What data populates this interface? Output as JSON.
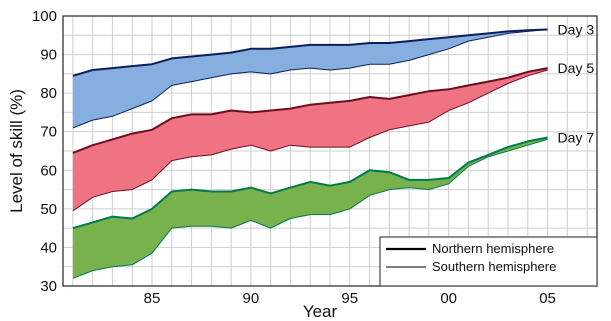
{
  "chart_data": {
    "type": "area",
    "xlabel": "Year",
    "ylabel": "Level of skill (%)",
    "xlim": [
      1980.5,
      2007.5
    ],
    "ylim": [
      30,
      100
    ],
    "x_ticks": [
      1985,
      1990,
      1995,
      2000,
      2005
    ],
    "x_tick_labels": [
      "85",
      "90",
      "95",
      "00",
      "05"
    ],
    "y_ticks": [
      30,
      40,
      50,
      60,
      70,
      80,
      90,
      100
    ],
    "grid": true,
    "legend": {
      "placement": "bottom-right",
      "entries": [
        {
          "label": "Northern hemisphere",
          "line": "thick"
        },
        {
          "label": "Southern hemisphere",
          "line": "thin"
        }
      ]
    },
    "series": [
      {
        "name": "Day 3",
        "fill": "#86afe0",
        "line": "#0b1f5c",
        "x": [
          1981,
          1982,
          1983,
          1984,
          1985,
          1986,
          1987,
          1988,
          1989,
          1990,
          1991,
          1992,
          1993,
          1994,
          1995,
          1996,
          1997,
          1998,
          1999,
          2000,
          2001,
          2002,
          2003,
          2004,
          2005
        ],
        "northern": [
          84.5,
          86.0,
          86.5,
          87.0,
          87.5,
          89.0,
          89.5,
          90.0,
          90.5,
          91.5,
          91.5,
          92.0,
          92.5,
          92.5,
          92.5,
          93.0,
          93.0,
          93.5,
          94.0,
          94.5,
          95.0,
          95.5,
          96.0,
          96.3,
          96.5
        ],
        "southern": [
          71.0,
          73.0,
          74.0,
          76.0,
          78.0,
          82.0,
          83.0,
          84.0,
          85.0,
          85.5,
          85.0,
          86.0,
          86.5,
          86.0,
          86.5,
          87.5,
          87.5,
          88.5,
          90.0,
          91.5,
          93.5,
          94.5,
          95.5,
          96.0,
          96.5
        ]
      },
      {
        "name": "Day 5",
        "fill": "#ef7382",
        "line": "#6b0f1f",
        "x": [
          1981,
          1982,
          1983,
          1984,
          1985,
          1986,
          1987,
          1988,
          1989,
          1990,
          1991,
          1992,
          1993,
          1994,
          1995,
          1996,
          1997,
          1998,
          1999,
          2000,
          2001,
          2002,
          2003,
          2004,
          2005
        ],
        "northern": [
          64.5,
          66.5,
          68.0,
          69.5,
          70.5,
          73.5,
          74.5,
          74.5,
          75.5,
          75.0,
          75.5,
          76.0,
          77.0,
          77.5,
          78.0,
          79.0,
          78.5,
          79.5,
          80.5,
          81.0,
          82.0,
          83.0,
          84.0,
          85.5,
          86.5
        ],
        "southern": [
          49.5,
          53.0,
          54.5,
          55.0,
          57.5,
          62.5,
          63.5,
          64.0,
          65.5,
          66.5,
          65.0,
          66.5,
          66.0,
          66.0,
          66.0,
          68.5,
          70.5,
          71.5,
          72.5,
          75.5,
          77.5,
          80.0,
          82.5,
          84.5,
          86.0
        ]
      },
      {
        "name": "Day 7",
        "fill": "#78b24d",
        "line": "#007a4d",
        "x": [
          1981,
          1982,
          1983,
          1984,
          1985,
          1986,
          1987,
          1988,
          1989,
          1990,
          1991,
          1992,
          1993,
          1994,
          1995,
          1996,
          1997,
          1998,
          1999,
          2000,
          2001,
          2002,
          2003,
          2004,
          2005
        ],
        "northern": [
          45.0,
          46.5,
          48.0,
          47.5,
          50.0,
          54.5,
          55.0,
          54.5,
          54.5,
          55.5,
          54.0,
          55.5,
          57.0,
          56.0,
          57.0,
          60.0,
          59.5,
          57.5,
          57.5,
          58.0,
          62.0,
          64.0,
          66.0,
          67.5,
          68.5
        ],
        "southern": [
          32.0,
          34.0,
          35.0,
          35.5,
          38.5,
          45.0,
          45.5,
          45.5,
          45.0,
          47.0,
          45.0,
          47.5,
          48.5,
          48.5,
          50.0,
          53.5,
          55.0,
          55.5,
          55.0,
          56.5,
          61.0,
          63.5,
          65.0,
          66.5,
          68.0
        ]
      }
    ]
  }
}
